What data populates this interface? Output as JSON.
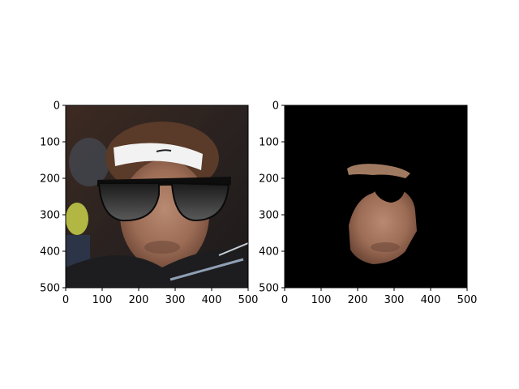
{
  "chart_data": [
    {
      "type": "image",
      "panel": "left",
      "description_visible": "photo of tennis player with sunglasses overlay",
      "xlim": [
        0,
        500
      ],
      "ylim": [
        500,
        0
      ],
      "xticks": [
        0,
        100,
        200,
        300,
        400,
        500
      ],
      "yticks": [
        0,
        100,
        200,
        300,
        400,
        500
      ],
      "grid": false
    },
    {
      "type": "image",
      "panel": "right",
      "description_visible": "masked face region on black background",
      "xlim": [
        0,
        500
      ],
      "ylim": [
        500,
        0
      ],
      "xticks": [
        0,
        100,
        200,
        300,
        400,
        500
      ],
      "yticks": [
        0,
        100,
        200,
        300,
        400,
        500
      ],
      "grid": false
    }
  ],
  "colors": {
    "mask_background": "#000000",
    "axes_frame": "#000000"
  }
}
